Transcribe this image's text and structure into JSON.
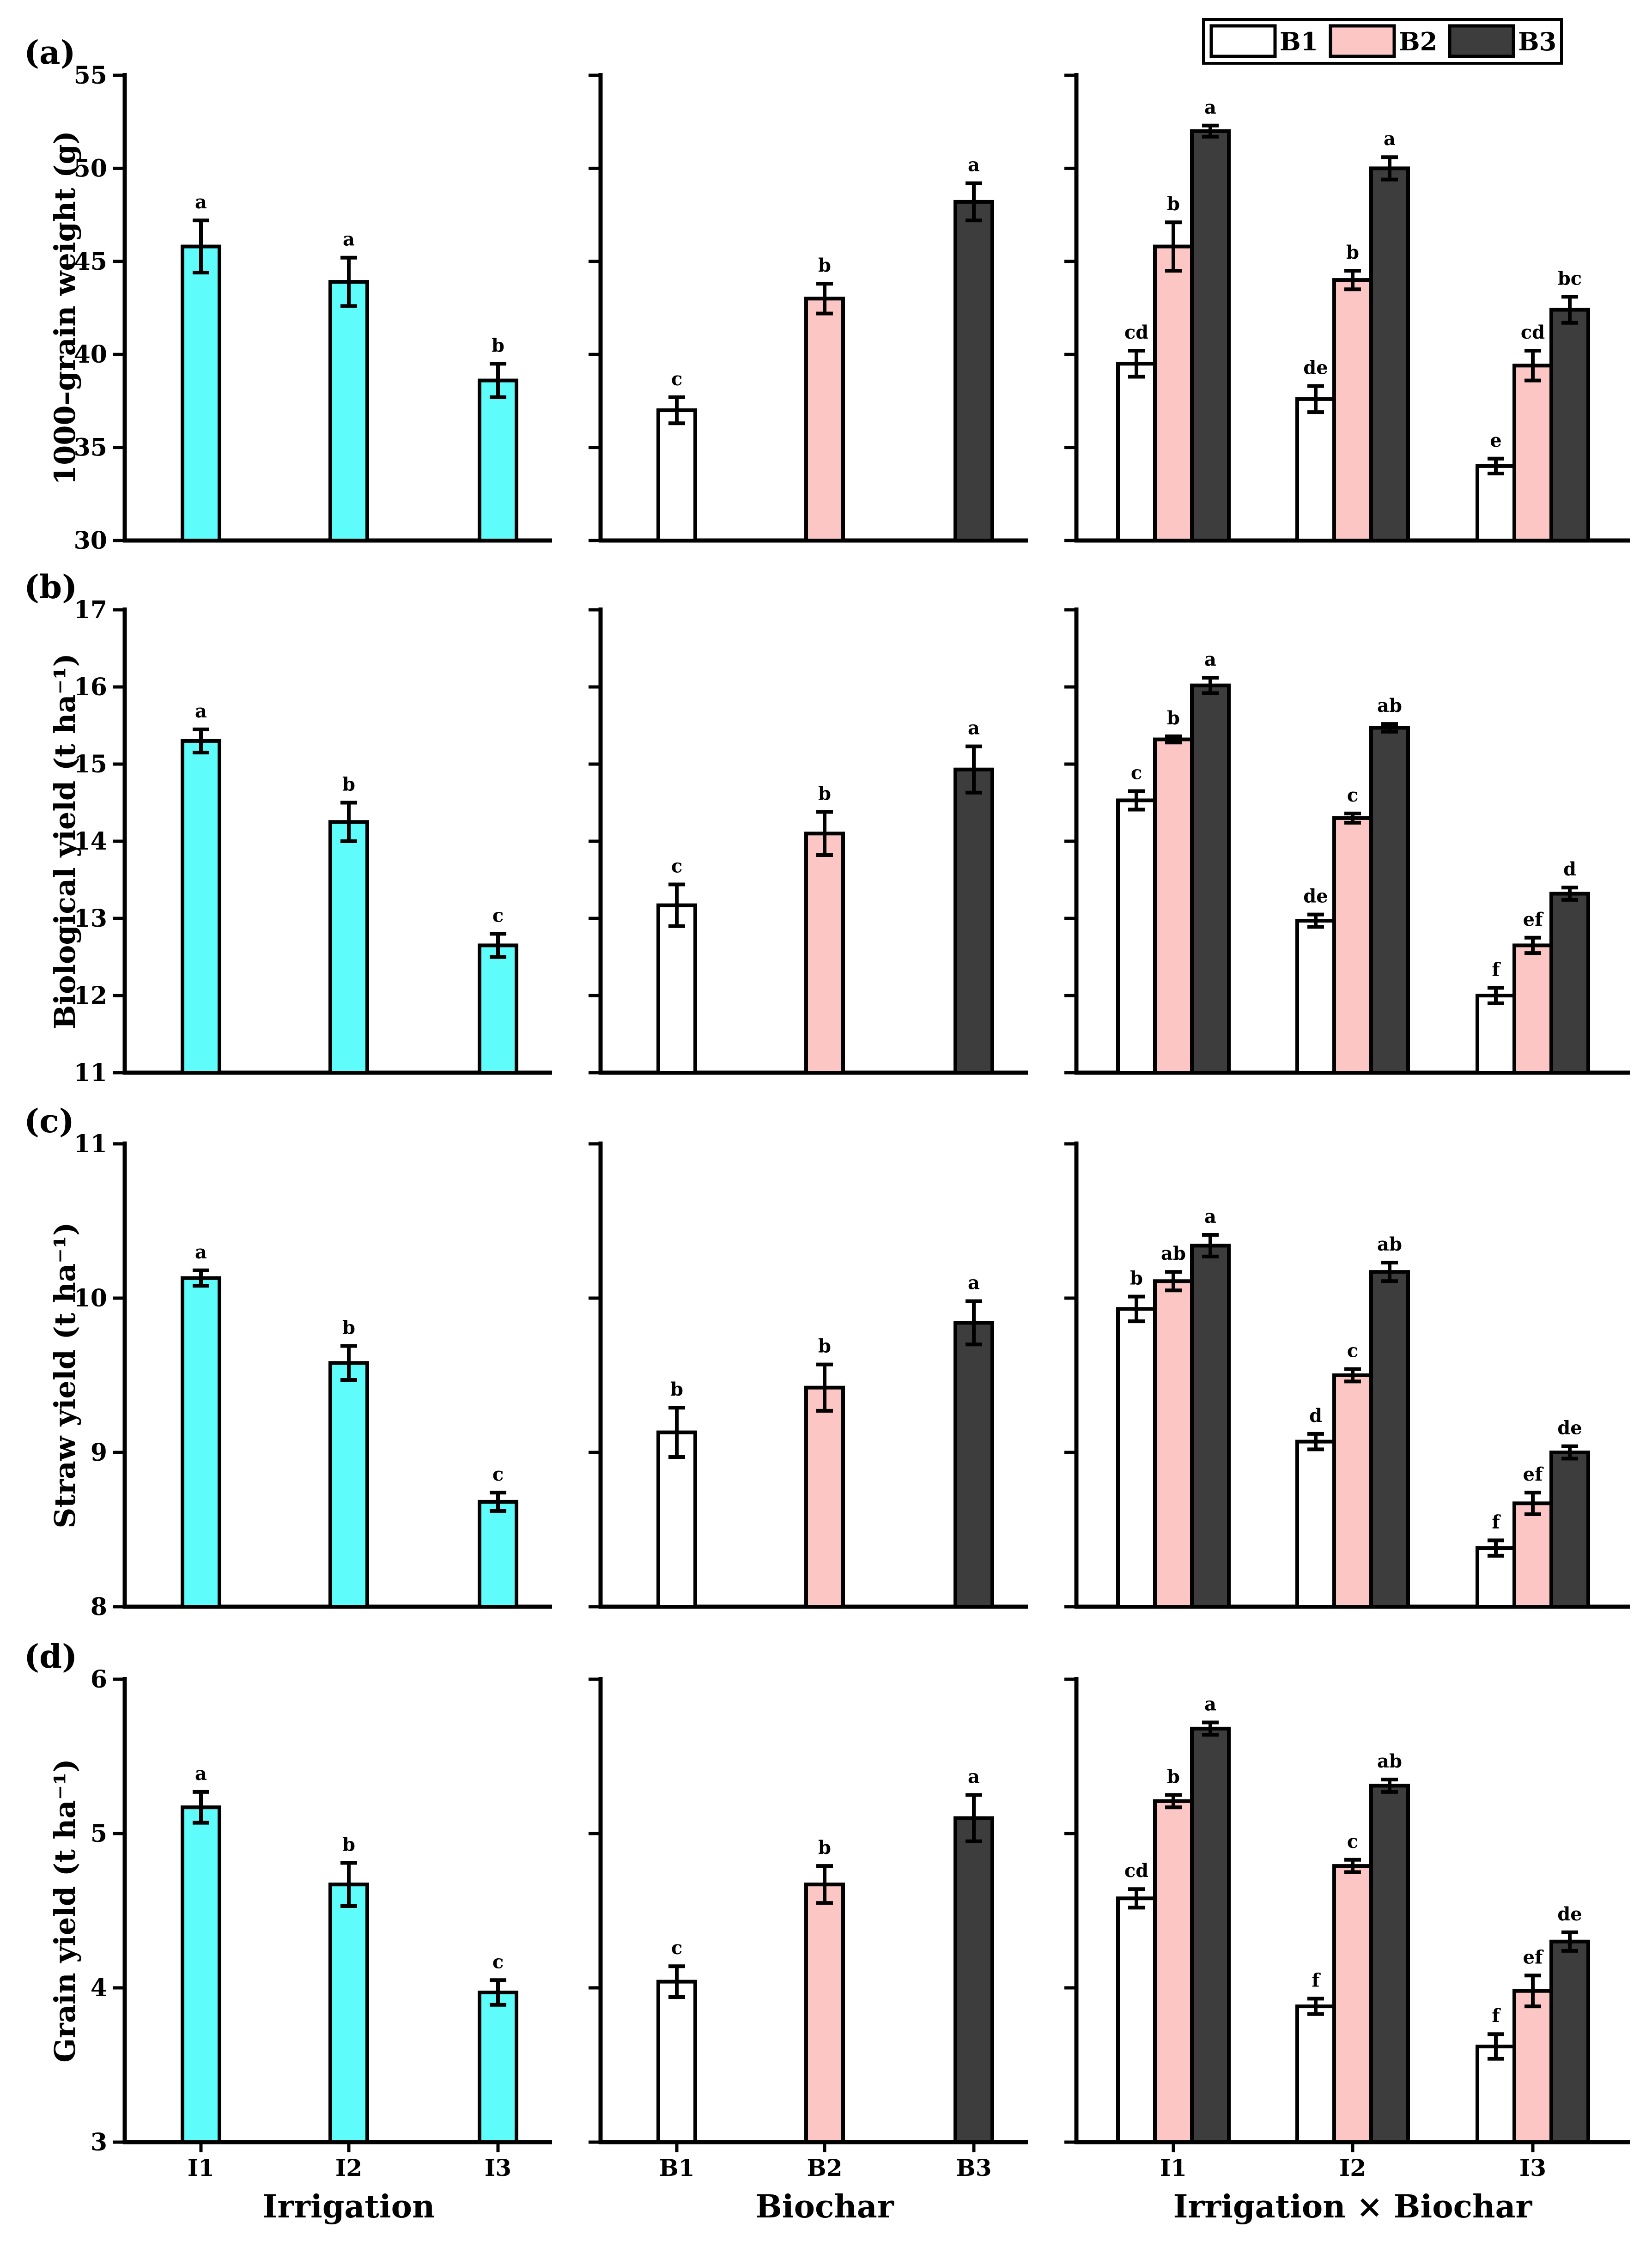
{
  "colors": {
    "irrigation": "#5ffcfc",
    "B1": "#ffffff",
    "B2": "#fbc6c4",
    "B3": "#3d3d3d",
    "line": "#000000"
  },
  "legend": [
    "B1",
    "B2",
    "B3"
  ],
  "x_titles": [
    "Irrigation",
    "Biochar",
    "Irrigation × Biochar"
  ],
  "chart_data": [
    {
      "panel": "(a)",
      "type": "bar",
      "ylabel": "1000–grain weight (g)",
      "ylim": [
        30,
        55
      ],
      "yticks": [
        30,
        35,
        40,
        45,
        50,
        55
      ],
      "irrigation": {
        "categories": [
          "I1",
          "I2",
          "I3"
        ],
        "values": [
          45.8,
          43.9,
          38.6
        ],
        "errors": [
          1.4,
          1.3,
          0.9
        ],
        "letters": [
          "a",
          "a",
          "b"
        ]
      },
      "biochar": {
        "categories": [
          "B1",
          "B2",
          "B3"
        ],
        "values": [
          37.0,
          43.0,
          48.2
        ],
        "errors": [
          0.7,
          0.8,
          1.0
        ],
        "letters": [
          "c",
          "b",
          "a"
        ]
      },
      "interaction": {
        "categories": [
          "I1",
          "I2",
          "I3"
        ],
        "series": [
          {
            "name": "B1",
            "values": [
              39.5,
              37.6,
              34.0
            ],
            "errors": [
              0.7,
              0.7,
              0.4
            ],
            "letters": [
              "cd",
              "de",
              "e"
            ]
          },
          {
            "name": "B2",
            "values": [
              45.8,
              44.0,
              39.4
            ],
            "errors": [
              1.3,
              0.5,
              0.8
            ],
            "letters": [
              "b",
              "b",
              "cd"
            ]
          },
          {
            "name": "B3",
            "values": [
              52.0,
              50.0,
              42.4
            ],
            "errors": [
              0.3,
              0.6,
              0.7
            ],
            "letters": [
              "a",
              "a",
              "bc"
            ]
          }
        ]
      }
    },
    {
      "panel": "(b)",
      "type": "bar",
      "ylabel": "Biological yield (t ha⁻¹)",
      "ylim": [
        11,
        17
      ],
      "yticks": [
        11,
        12,
        13,
        14,
        15,
        16,
        17
      ],
      "irrigation": {
        "categories": [
          "I1",
          "I2",
          "I3"
        ],
        "values": [
          15.3,
          14.25,
          12.65
        ],
        "errors": [
          0.15,
          0.25,
          0.15
        ],
        "letters": [
          "a",
          "b",
          "c"
        ]
      },
      "biochar": {
        "categories": [
          "B1",
          "B2",
          "B3"
        ],
        "values": [
          13.17,
          14.1,
          14.93
        ],
        "errors": [
          0.27,
          0.28,
          0.3
        ],
        "letters": [
          "c",
          "b",
          "a"
        ]
      },
      "interaction": {
        "categories": [
          "I1",
          "I2",
          "I3"
        ],
        "series": [
          {
            "name": "B1",
            "values": [
              14.53,
              12.97,
              12.0
            ],
            "errors": [
              0.12,
              0.08,
              0.1
            ],
            "letters": [
              "c",
              "de",
              "f"
            ]
          },
          {
            "name": "B2",
            "values": [
              15.32,
              14.3,
              12.65
            ],
            "errors": [
              0.04,
              0.06,
              0.1
            ],
            "letters": [
              "b",
              "c",
              "ef"
            ]
          },
          {
            "name": "B3",
            "values": [
              16.02,
              15.47,
              13.32
            ],
            "errors": [
              0.1,
              0.05,
              0.08
            ],
            "letters": [
              "a",
              "ab",
              "d"
            ]
          }
        ]
      }
    },
    {
      "panel": "(c)",
      "type": "bar",
      "ylabel": "Straw yield (t ha⁻¹)",
      "ylim": [
        8,
        11
      ],
      "yticks": [
        8,
        9,
        10,
        11
      ],
      "irrigation": {
        "categories": [
          "I1",
          "I2",
          "I3"
        ],
        "values": [
          10.13,
          9.58,
          8.68
        ],
        "errors": [
          0.05,
          0.11,
          0.06
        ],
        "letters": [
          "a",
          "b",
          "c"
        ]
      },
      "biochar": {
        "categories": [
          "B1",
          "B2",
          "B3"
        ],
        "values": [
          9.13,
          9.42,
          9.84
        ],
        "errors": [
          0.16,
          0.15,
          0.14
        ],
        "letters": [
          "b",
          "b",
          "a"
        ]
      },
      "interaction": {
        "categories": [
          "I1",
          "I2",
          "I3"
        ],
        "series": [
          {
            "name": "B1",
            "values": [
              9.93,
              9.07,
              8.38
            ],
            "errors": [
              0.08,
              0.05,
              0.05
            ],
            "letters": [
              "b",
              "d",
              "f"
            ]
          },
          {
            "name": "B2",
            "values": [
              10.11,
              9.5,
              8.67
            ],
            "errors": [
              0.06,
              0.04,
              0.07
            ],
            "letters": [
              "ab",
              "c",
              "ef"
            ]
          },
          {
            "name": "B3",
            "values": [
              10.34,
              10.17,
              9.0
            ],
            "errors": [
              0.07,
              0.06,
              0.04
            ],
            "letters": [
              "a",
              "ab",
              "de"
            ]
          }
        ]
      }
    },
    {
      "panel": "(d)",
      "type": "bar",
      "ylabel": "Grain yield (t ha⁻¹)",
      "ylim": [
        3,
        6
      ],
      "yticks": [
        3,
        4,
        5,
        6
      ],
      "irrigation": {
        "categories": [
          "I1",
          "I2",
          "I3"
        ],
        "values": [
          5.17,
          4.67,
          3.97
        ],
        "errors": [
          0.1,
          0.14,
          0.08
        ],
        "letters": [
          "a",
          "b",
          "c"
        ]
      },
      "biochar": {
        "categories": [
          "B1",
          "B2",
          "B3"
        ],
        "values": [
          4.04,
          4.67,
          5.1
        ],
        "errors": [
          0.1,
          0.12,
          0.15
        ],
        "letters": [
          "c",
          "b",
          "a"
        ]
      },
      "interaction": {
        "categories": [
          "I1",
          "I2",
          "I3"
        ],
        "series": [
          {
            "name": "B1",
            "values": [
              4.58,
              3.88,
              3.62
            ],
            "errors": [
              0.06,
              0.05,
              0.08
            ],
            "letters": [
              "cd",
              "f",
              "f"
            ]
          },
          {
            "name": "B2",
            "values": [
              5.21,
              4.79,
              3.98
            ],
            "errors": [
              0.04,
              0.04,
              0.1
            ],
            "letters": [
              "b",
              "c",
              "ef"
            ]
          },
          {
            "name": "B3",
            "values": [
              5.68,
              5.31,
              4.3
            ],
            "errors": [
              0.04,
              0.04,
              0.06
            ],
            "letters": [
              "a",
              "ab",
              "de"
            ]
          }
        ]
      }
    }
  ]
}
